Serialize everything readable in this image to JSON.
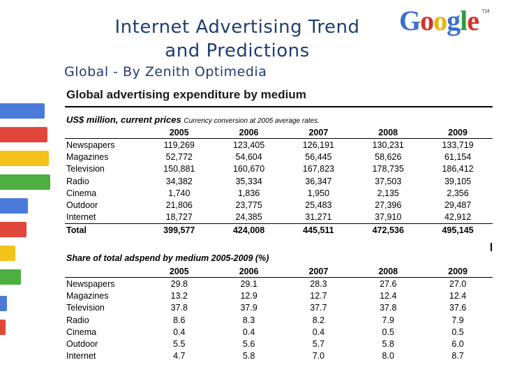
{
  "slide": {
    "title_line1": "Internet Advertising Trend",
    "title_line2": "and Predictions",
    "subtitle": "Global  - By Zenith Optimedia"
  },
  "logo": {
    "letters": [
      "G",
      "o",
      "o",
      "g",
      "l",
      "e"
    ],
    "tm": "TM"
  },
  "colors": {
    "title": "#1f3d72",
    "bar_blue": "#4a7bd9",
    "bar_red": "#e0473a",
    "bar_yellow": "#f3c21b",
    "bar_green": "#4caf3f"
  },
  "table1": {
    "heading": "Global advertising expenditure by medium",
    "units": "US$ million, current prices",
    "note": "Currency conversion at 2005 average rates.",
    "years": [
      "2005",
      "2006",
      "2007",
      "2008",
      "2009"
    ],
    "rows": [
      {
        "label": "Newspapers",
        "values": [
          "119,269",
          "123,405",
          "126,191",
          "130,231",
          "133,719"
        ]
      },
      {
        "label": "Magazines",
        "values": [
          "52,772",
          "54,604",
          "56,445",
          "58,626",
          "61,154"
        ]
      },
      {
        "label": "Television",
        "values": [
          "150,881",
          "160,670",
          "167,823",
          "178,735",
          "186,412"
        ]
      },
      {
        "label": "Radio",
        "values": [
          "34,382",
          "35,334",
          "36,347",
          "37,503",
          "39,105"
        ]
      },
      {
        "label": "Cinema",
        "values": [
          "1,740",
          "1,836",
          "1,950",
          "2,135",
          "2,356"
        ]
      },
      {
        "label": "Outdoor",
        "values": [
          "21,806",
          "23,775",
          "25,483",
          "27,396",
          "29,487"
        ]
      },
      {
        "label": "Internet",
        "values": [
          "18,727",
          "24,385",
          "31,271",
          "37,910",
          "42,912"
        ]
      }
    ],
    "total": {
      "label": "Total",
      "values": [
        "399,577",
        "424,008",
        "445,511",
        "472,536",
        "495,145"
      ]
    }
  },
  "table2": {
    "heading": "Share of total adspend by medium 2005-2009 (%)",
    "years": [
      "2005",
      "2006",
      "2007",
      "2008",
      "2009"
    ],
    "rows": [
      {
        "label": "Newspapers",
        "values": [
          "29.8",
          "29.1",
          "28.3",
          "27.6",
          "27.0"
        ]
      },
      {
        "label": "Magazines",
        "values": [
          "13.2",
          "12.9",
          "12.7",
          "12.4",
          "12.4"
        ]
      },
      {
        "label": "Television",
        "values": [
          "37.8",
          "37.9",
          "37.7",
          "37.8",
          "37.6"
        ]
      },
      {
        "label": "Radio",
        "values": [
          "8.6",
          "8.3",
          "8.2",
          "7.9",
          "7.9"
        ]
      },
      {
        "label": "Cinema",
        "values": [
          "0.4",
          "0.4",
          "0.4",
          "0.5",
          "0.5"
        ]
      },
      {
        "label": "Outdoor",
        "values": [
          "5.5",
          "5.6",
          "5.7",
          "5.8",
          "6.0"
        ]
      },
      {
        "label": "Internet",
        "values": [
          "4.7",
          "5.8",
          "7.0",
          "8.0",
          "8.7"
        ]
      }
    ]
  }
}
